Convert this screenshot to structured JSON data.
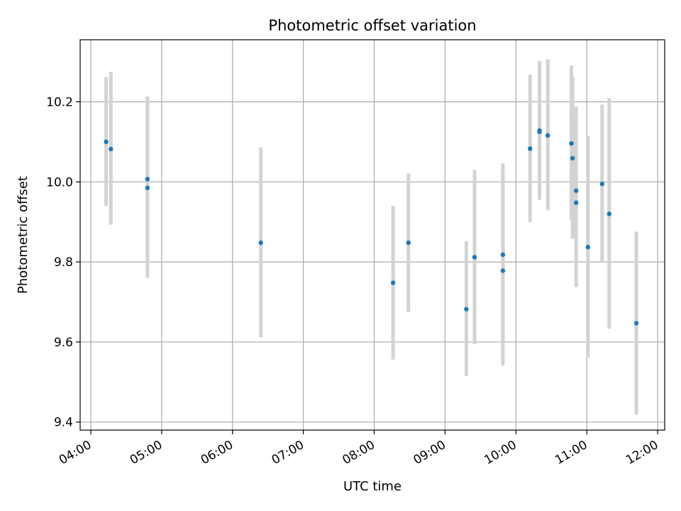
{
  "chart_data": {
    "type": "scatter",
    "title": "Photometric offset variation",
    "xlabel": "UTC time",
    "ylabel": "Photometric offset",
    "grid": true,
    "xlim": [
      "03:51",
      "12:06"
    ],
    "ylim": [
      9.38,
      10.355
    ],
    "x_ticks": [
      "04:00",
      "05:00",
      "06:00",
      "07:00",
      "08:00",
      "09:00",
      "10:00",
      "11:00",
      "12:00"
    ],
    "y_ticks": [
      "9.4",
      "9.6",
      "9.8",
      "10.0",
      "10.2"
    ],
    "colors": {
      "points": "#1f77b4",
      "errorbars": "#d3d3d3",
      "grid": "#b0b0b0"
    },
    "points": [
      {
        "x": "04:13",
        "y": 10.1,
        "y_low": 9.94,
        "y_high": 10.262
      },
      {
        "x": "04:17",
        "y": 10.082,
        "y_low": 9.893,
        "y_high": 10.275
      },
      {
        "x": "04:48",
        "y": 10.007,
        "y_low": 9.81,
        "y_high": 10.214
      },
      {
        "x": "04:48",
        "y": 9.985,
        "y_low": 9.76,
        "y_high": 10.21
      },
      {
        "x": "06:24",
        "y": 9.848,
        "y_low": 9.612,
        "y_high": 10.086
      },
      {
        "x": "08:16",
        "y": 9.748,
        "y_low": 9.556,
        "y_high": 9.94
      },
      {
        "x": "08:29",
        "y": 9.848,
        "y_low": 9.675,
        "y_high": 10.021
      },
      {
        "x": "09:18",
        "y": 9.682,
        "y_low": 9.515,
        "y_high": 9.852
      },
      {
        "x": "09:25",
        "y": 9.812,
        "y_low": 9.595,
        "y_high": 10.03
      },
      {
        "x": "09:49",
        "y": 9.818,
        "y_low": 9.596,
        "y_high": 10.046
      },
      {
        "x": "09:49",
        "y": 9.778,
        "y_low": 9.541,
        "y_high": 10.02
      },
      {
        "x": "10:12",
        "y": 10.083,
        "y_low": 9.899,
        "y_high": 10.268
      },
      {
        "x": "10:20",
        "y": 10.128,
        "y_low": 9.955,
        "y_high": 10.302
      },
      {
        "x": "10:20",
        "y": 10.125,
        "y_low": 9.966,
        "y_high": 10.29
      },
      {
        "x": "10:27",
        "y": 10.116,
        "y_low": 9.929,
        "y_high": 10.306
      },
      {
        "x": "10:47",
        "y": 10.096,
        "y_low": 9.905,
        "y_high": 10.291
      },
      {
        "x": "10:48",
        "y": 10.059,
        "y_low": 9.858,
        "y_high": 10.262
      },
      {
        "x": "10:51",
        "y": 9.978,
        "y_low": 9.765,
        "y_high": 10.188
      },
      {
        "x": "10:51",
        "y": 9.948,
        "y_low": 9.737,
        "y_high": 10.16
      },
      {
        "x": "11:01",
        "y": 9.837,
        "y_low": 9.561,
        "y_high": 10.115
      },
      {
        "x": "11:13",
        "y": 9.995,
        "y_low": 9.8,
        "y_high": 10.193
      },
      {
        "x": "11:19",
        "y": 9.92,
        "y_low": 9.633,
        "y_high": 10.209
      },
      {
        "x": "11:42",
        "y": 9.647,
        "y_low": 9.419,
        "y_high": 9.876
      }
    ]
  }
}
